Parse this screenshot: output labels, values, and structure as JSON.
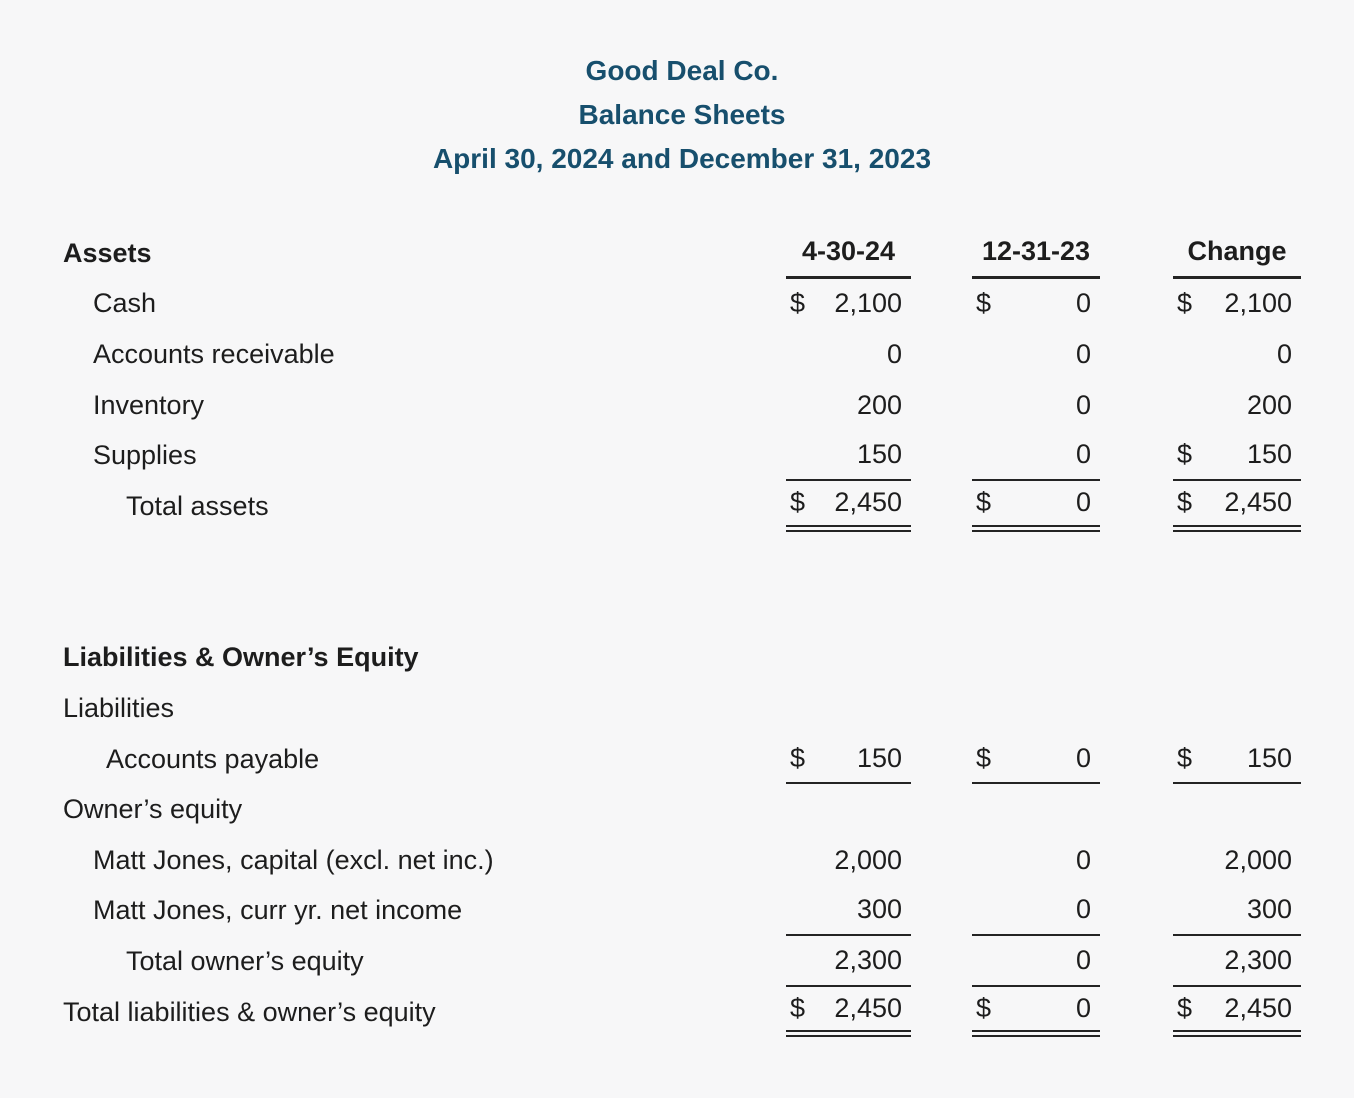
{
  "page": {
    "background": "#f7f7f8"
  },
  "title": {
    "company": "Good Deal Co.",
    "report": "Balance Sheets",
    "dates": "April 30, 2024 and December 31, 2023",
    "color": "#174f6d"
  },
  "table": {
    "columns": [
      "4-30-24",
      "12-31-23",
      "Change"
    ],
    "rows": [
      {
        "head": true,
        "bold": true,
        "indent": 0,
        "label": "Assets",
        "rule": "none"
      },
      {
        "indent": 1,
        "label": "Cash",
        "rule": "none",
        "cells": [
          {
            "cur": "$",
            "val": "2,100"
          },
          {
            "cur": "$",
            "val": "0"
          },
          {
            "cur": "$",
            "val": "2,100"
          }
        ]
      },
      {
        "indent": 1,
        "label": "Accounts receivable",
        "rule": "none",
        "cells": [
          {
            "cur": "",
            "val": "0"
          },
          {
            "cur": "",
            "val": "0"
          },
          {
            "cur": "",
            "val": "0"
          }
        ]
      },
      {
        "indent": 1,
        "label": "Inventory",
        "rule": "none",
        "cells": [
          {
            "cur": "",
            "val": "200"
          },
          {
            "cur": "",
            "val": "0"
          },
          {
            "cur": "",
            "val": "200"
          }
        ]
      },
      {
        "indent": 1,
        "label": "Supplies",
        "rule": "single",
        "cells": [
          {
            "cur": "",
            "val": "150"
          },
          {
            "cur": "",
            "val": "0"
          },
          {
            "cur": "$",
            "val": "150"
          }
        ]
      },
      {
        "indent": 3,
        "label": "Total assets",
        "rule": "double",
        "cells": [
          {
            "cur": "$",
            "val": "2,450"
          },
          {
            "cur": "$",
            "val": "0"
          },
          {
            "cur": "$",
            "val": "2,450"
          }
        ]
      },
      {
        "spacer": true
      },
      {
        "bold": true,
        "indent": 0,
        "label": "Liabilities & Owner’s Equity",
        "rule": "none"
      },
      {
        "indent": 0,
        "label": "Liabilities",
        "rule": "none"
      },
      {
        "indent": 2,
        "label": "Accounts payable",
        "rule": "single",
        "cells": [
          {
            "cur": "$",
            "val": "150"
          },
          {
            "cur": "$",
            "val": "0"
          },
          {
            "cur": "$",
            "val": "150"
          }
        ]
      },
      {
        "indent": 0,
        "label": "Owner’s equity",
        "rule": "none"
      },
      {
        "indent": 1,
        "label": "Matt Jones, capital (excl. net inc.)",
        "rule": "none",
        "cells": [
          {
            "cur": "",
            "val": "2,000"
          },
          {
            "cur": "",
            "val": "0"
          },
          {
            "cur": "",
            "val": "2,000"
          }
        ]
      },
      {
        "indent": 1,
        "label": "Matt Jones, curr yr. net income",
        "rule": "single",
        "cells": [
          {
            "cur": "",
            "val": "300"
          },
          {
            "cur": "",
            "val": "0"
          },
          {
            "cur": "",
            "val": "300"
          }
        ]
      },
      {
        "indent": 3,
        "label": "Total owner’s equity",
        "rule": "single",
        "cells": [
          {
            "cur": "",
            "val": "2,300"
          },
          {
            "cur": "",
            "val": "0"
          },
          {
            "cur": "",
            "val": "2,300"
          }
        ]
      },
      {
        "indent": 0,
        "label": "Total liabilities & owner’s equity",
        "rule": "double",
        "cells": [
          {
            "cur": "$",
            "val": "2,450"
          },
          {
            "cur": "$",
            "val": "0"
          },
          {
            "cur": "$",
            "val": "2,450"
          }
        ]
      }
    ]
  }
}
